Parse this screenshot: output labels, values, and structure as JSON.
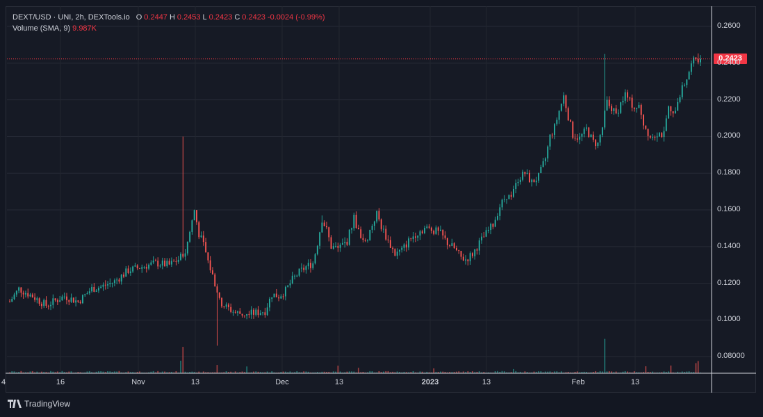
{
  "legend": {
    "symbol": "DEXT/USD · UNI, 2h, DEXTools.io",
    "open_label": "O",
    "open": "0.2447",
    "high_label": "H",
    "high": "0.2453",
    "low_label": "L",
    "low": "0.2423",
    "close_label": "C",
    "close": "0.2423",
    "change": "-0.0024 (-0.99%)",
    "volume_label": "Volume (SMA, 9)",
    "volume_value": "9.987K"
  },
  "last_price_tag": "0.2423",
  "branding": "TradingView",
  "colors": {
    "up": "#26a69a",
    "down": "#ef5350",
    "background": "#161a25",
    "price_line": "#f23645"
  },
  "chart_data": {
    "type": "candlestick",
    "y_axis_ticks": [
      "0.2600",
      "0.2400",
      "0.2200",
      "0.2000",
      "0.1800",
      "0.1600",
      "0.1400",
      "0.1200",
      "0.1000",
      "0.08000"
    ],
    "x_axis_ticks": [
      {
        "label": "4",
        "bold": false
      },
      {
        "label": "16",
        "bold": false
      },
      {
        "label": "Nov",
        "bold": false
      },
      {
        "label": "13",
        "bold": false
      },
      {
        "label": "Dec",
        "bold": false
      },
      {
        "label": "13",
        "bold": false
      },
      {
        "label": "2023",
        "bold": true
      },
      {
        "label": "13",
        "bold": false
      },
      {
        "label": "Feb",
        "bold": false
      },
      {
        "label": "13",
        "bold": false
      }
    ],
    "ylim": [
      0.071,
      0.271
    ],
    "last_price": 0.2423,
    "price_path": [
      [
        0,
        0.11
      ],
      [
        4,
        0.117
      ],
      [
        10,
        0.113
      ],
      [
        16,
        0.108
      ],
      [
        24,
        0.113
      ],
      [
        30,
        0.11
      ],
      [
        36,
        0.117
      ],
      [
        40,
        0.118
      ],
      [
        46,
        0.121
      ],
      [
        52,
        0.127
      ],
      [
        58,
        0.129
      ],
      [
        64,
        0.131
      ],
      [
        70,
        0.13
      ],
      [
        74,
        0.133
      ],
      [
        77,
        0.137
      ],
      [
        79,
        0.148
      ],
      [
        81,
        0.16
      ],
      [
        83,
        0.147
      ],
      [
        85,
        0.141
      ],
      [
        87,
        0.132
      ],
      [
        90,
        0.12
      ],
      [
        92,
        0.11
      ],
      [
        95,
        0.107
      ],
      [
        99,
        0.104
      ],
      [
        104,
        0.103
      ],
      [
        108,
        0.104
      ],
      [
        112,
        0.105
      ],
      [
        115,
        0.114
      ],
      [
        118,
        0.113
      ],
      [
        121,
        0.116
      ],
      [
        124,
        0.122
      ],
      [
        127,
        0.126
      ],
      [
        130,
        0.129
      ],
      [
        133,
        0.131
      ],
      [
        135,
        0.142
      ],
      [
        137,
        0.155
      ],
      [
        139,
        0.149
      ],
      [
        141,
        0.14
      ],
      [
        144,
        0.139
      ],
      [
        148,
        0.143
      ],
      [
        151,
        0.156
      ],
      [
        153,
        0.148
      ],
      [
        156,
        0.142
      ],
      [
        159,
        0.152
      ],
      [
        161,
        0.158
      ],
      [
        163,
        0.151
      ],
      [
        166,
        0.143
      ],
      [
        169,
        0.136
      ],
      [
        172,
        0.138
      ],
      [
        175,
        0.143
      ],
      [
        178,
        0.147
      ],
      [
        182,
        0.15
      ],
      [
        186,
        0.149
      ],
      [
        189,
        0.147
      ],
      [
        192,
        0.142
      ],
      [
        195,
        0.139
      ],
      [
        198,
        0.134
      ],
      [
        200,
        0.133
      ],
      [
        203,
        0.136
      ],
      [
        206,
        0.142
      ],
      [
        209,
        0.147
      ],
      [
        212,
        0.152
      ],
      [
        215,
        0.162
      ],
      [
        218,
        0.168
      ],
      [
        220,
        0.166
      ],
      [
        223,
        0.177
      ],
      [
        226,
        0.18
      ],
      [
        229,
        0.175
      ],
      [
        232,
        0.178
      ],
      [
        235,
        0.188
      ],
      [
        237,
        0.2
      ],
      [
        239,
        0.205
      ],
      [
        241,
        0.214
      ],
      [
        243,
        0.222
      ],
      [
        245,
        0.211
      ],
      [
        247,
        0.201
      ],
      [
        250,
        0.199
      ],
      [
        253,
        0.204
      ],
      [
        256,
        0.197
      ],
      [
        258,
        0.196
      ],
      [
        260,
        0.205
      ],
      [
        262,
        0.219
      ],
      [
        264,
        0.215
      ],
      [
        266,
        0.212
      ],
      [
        268,
        0.218
      ],
      [
        270,
        0.223
      ],
      [
        272,
        0.219
      ],
      [
        274,
        0.216
      ],
      [
        276,
        0.216
      ],
      [
        278,
        0.207
      ],
      [
        281,
        0.2
      ],
      [
        284,
        0.202
      ],
      [
        287,
        0.201
      ],
      [
        289,
        0.215
      ],
      [
        291,
        0.211
      ],
      [
        293,
        0.22
      ],
      [
        295,
        0.226
      ],
      [
        297,
        0.232
      ],
      [
        299,
        0.239
      ],
      [
        301,
        0.243
      ],
      [
        303,
        0.2423
      ]
    ],
    "volume_spikes": [
      [
        75,
        8300
      ],
      [
        76,
        17500
      ],
      [
        91,
        5500
      ],
      [
        104,
        4500
      ],
      [
        144,
        5000
      ],
      [
        153,
        3600
      ],
      [
        186,
        3200
      ],
      [
        221,
        2800
      ],
      [
        261,
        22800
      ],
      [
        279,
        4600
      ],
      [
        290,
        5100
      ],
      [
        301,
        6700
      ],
      [
        302,
        8100
      ]
    ],
    "volume_ylim": [
      0,
      60000
    ]
  }
}
